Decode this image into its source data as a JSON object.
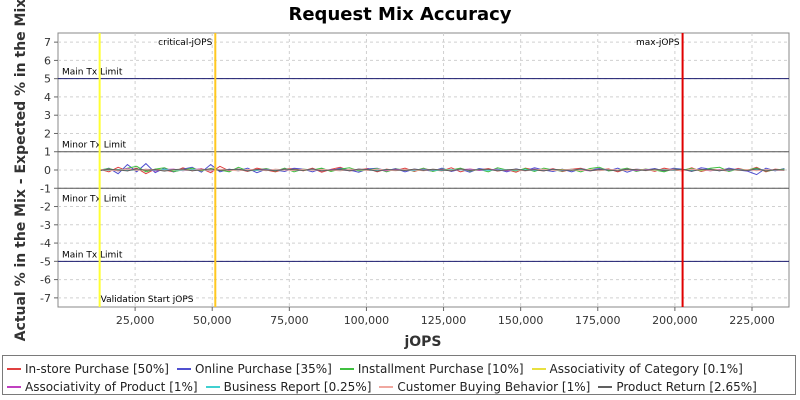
{
  "chart_data": {
    "type": "line",
    "title": "Request Mix Accuracy",
    "xlabel": "jOPS",
    "ylabel": "Actual % in the Mix - Expected % in the Mix",
    "xlim": [
      0,
      237000
    ],
    "ylim": [
      -7.5,
      7.5
    ],
    "x_ticks": [
      25000,
      50000,
      75000,
      100000,
      125000,
      150000,
      175000,
      200000,
      225000
    ],
    "x_tick_labels": [
      "25,000",
      "50,000",
      "75,000",
      "100,000",
      "125,000",
      "150,000",
      "175,000",
      "200,000",
      "225,000"
    ],
    "y_ticks": [
      -7,
      -6,
      -5,
      -4,
      -3,
      -2,
      -1,
      0,
      1,
      2,
      3,
      4,
      5,
      6,
      7
    ],
    "y_tick_labels": [
      "-7",
      "-6",
      "-5",
      "-4",
      "-3",
      "-2",
      "-1",
      "0",
      "1",
      "2",
      "3",
      "4",
      "5",
      "6",
      "7"
    ],
    "grid": true,
    "legend_position": "bottom",
    "reference_lines": [
      {
        "label": "Main Tx Limit",
        "y": 5,
        "color": "#1a1a6e"
      },
      {
        "label": "Minor Tx Limit",
        "y": 1,
        "color": "#555555"
      },
      {
        "label": "Minor Tx Limit",
        "y": -1,
        "color": "#555555"
      },
      {
        "label": "Main Tx Limit",
        "y": -5,
        "color": "#1a1a6e"
      }
    ],
    "vertical_markers": [
      {
        "label": "Validation Start jOPS",
        "x": 13500,
        "color": "#ffff33",
        "label_pos": "bottom"
      },
      {
        "label": "critical-jOPS",
        "x": 51000,
        "color": "#ffc820",
        "label_pos": "top"
      },
      {
        "label": "max-jOPS",
        "x": 202500,
        "color": "#e00000",
        "label_pos": "top"
      }
    ],
    "x": [
      13500,
      16500,
      19500,
      22500,
      25500,
      28500,
      31500,
      34500,
      37500,
      40500,
      43500,
      46500,
      49500,
      52500,
      55500,
      58500,
      61500,
      64500,
      67500,
      70500,
      73500,
      76500,
      79500,
      82500,
      85500,
      88500,
      91500,
      94500,
      97500,
      100500,
      103500,
      106500,
      109500,
      112500,
      115500,
      118500,
      121500,
      124500,
      127500,
      130500,
      133500,
      136500,
      139500,
      142500,
      145500,
      148500,
      151500,
      154500,
      157500,
      160500,
      163500,
      166500,
      169500,
      172500,
      175500,
      178500,
      181500,
      184500,
      187500,
      190500,
      193500,
      196500,
      199500,
      202500,
      205500,
      208500,
      211500,
      214500,
      217500,
      220500,
      223500,
      226500,
      229500,
      232500,
      235500
    ],
    "series": [
      {
        "name": "In-store Purchase [50%]",
        "color": "#e04040",
        "values": [
          0.05,
          -0.1,
          0.15,
          -0.05,
          0.1,
          -0.2,
          0.05,
          0.0,
          -0.1,
          0.12,
          -0.05,
          0.08,
          -0.15,
          0.2,
          -0.05,
          0.05,
          -0.08,
          0.1,
          0.0,
          -0.1,
          0.05,
          0.08,
          -0.05,
          0.1,
          -0.12,
          0.04,
          0.15,
          -0.05,
          0.0,
          0.08,
          -0.1,
          0.05,
          -0.03,
          0.1,
          -0.08,
          0.06,
          0.0,
          -0.05,
          0.12,
          -0.1,
          0.05,
          0.0,
          0.08,
          -0.06,
          0.03,
          -0.12,
          0.1,
          0.0,
          -0.05,
          0.07,
          -0.09,
          0.04,
          0.1,
          -0.04,
          0.0,
          0.06,
          -0.1,
          0.08,
          -0.02,
          0.05,
          -0.07,
          0.1,
          0.0,
          -0.05,
          0.12,
          -0.08,
          0.04,
          0.0,
          -0.06,
          0.09,
          -0.03,
          0.15,
          -0.1,
          0.05,
          0.0
        ]
      },
      {
        "name": "Online Purchase [35%]",
        "color": "#5050d0",
        "values": [
          -0.05,
          0.1,
          -0.2,
          0.3,
          -0.1,
          0.35,
          -0.15,
          0.1,
          -0.1,
          0.05,
          0.15,
          -0.12,
          0.3,
          -0.1,
          0.05,
          -0.05,
          0.1,
          -0.15,
          0.05,
          0.0,
          -0.08,
          0.1,
          0.05,
          -0.1,
          0.08,
          -0.05,
          0.1,
          0.0,
          -0.12,
          0.06,
          0.1,
          -0.05,
          0.08,
          -0.1,
          0.05,
          0.0,
          -0.06,
          0.1,
          -0.08,
          0.05,
          -0.12,
          0.08,
          0.0,
          0.05,
          -0.1,
          0.06,
          -0.05,
          0.12,
          0.0,
          -0.08,
          0.05,
          -0.1,
          0.06,
          0.0,
          0.08,
          -0.05,
          0.1,
          -0.12,
          0.05,
          0.0,
          0.08,
          -0.06,
          0.1,
          0.04,
          -0.08,
          0.12,
          0.05,
          -0.05,
          0.1,
          0.0,
          -0.06,
          -0.25,
          0.1,
          -0.05,
          0.08
        ]
      },
      {
        "name": "Installment Purchase [10%]",
        "color": "#40c040",
        "values": [
          0.0,
          0.08,
          -0.05,
          0.1,
          0.2,
          -0.1,
          0.05,
          0.12,
          -0.08,
          0.0,
          0.1,
          -0.05,
          0.08,
          0.0,
          -0.1,
          0.15,
          -0.05,
          0.0,
          0.08,
          -0.06,
          0.1,
          -0.1,
          0.05,
          0.0,
          0.1,
          -0.08,
          0.05,
          0.12,
          -0.05,
          0.0,
          0.08,
          -0.1,
          0.06,
          0.0,
          -0.05,
          0.1,
          -0.08,
          0.05,
          0.0,
          0.1,
          -0.06,
          0.04,
          -0.1,
          0.12,
          0.0,
          -0.05,
          0.08,
          -0.08,
          0.1,
          0.0,
          -0.06,
          0.05,
          -0.1,
          0.08,
          0.15,
          -0.05,
          0.0,
          0.1,
          -0.08,
          0.05,
          0.0,
          -0.1,
          0.06,
          0.0,
          0.08,
          -0.05,
          0.1,
          0.15,
          -0.08,
          0.05,
          0.0,
          0.1,
          -0.06,
          0.0,
          0.05
        ]
      },
      {
        "name": "Associativity of Category [0.1%]",
        "color": "#e8e040",
        "values": [
          0.02,
          -0.02,
          0.03,
          -0.01,
          0.02,
          -0.03,
          0.01,
          0.02,
          -0.02,
          0.01,
          0.03,
          -0.02,
          0.02,
          0.0,
          -0.01,
          0.02,
          -0.03,
          0.01,
          0.02,
          -0.01,
          0.0,
          0.03,
          -0.02,
          0.01,
          0.02,
          -0.02,
          0.01,
          0.0,
          0.02,
          -0.01,
          0.03,
          -0.02,
          0.01,
          0.02,
          -0.03,
          0.0,
          0.02,
          -0.01,
          0.01,
          0.03,
          -0.02,
          0.0,
          0.01,
          -0.02,
          0.02,
          0.0,
          -0.01,
          0.02,
          -0.02,
          0.01,
          0.03,
          -0.01,
          0.0,
          0.02,
          -0.02,
          0.01,
          0.0,
          -0.01,
          0.02,
          0.01,
          -0.02,
          0.03,
          0.0,
          -0.01,
          0.02,
          -0.02,
          0.01,
          0.0,
          0.02,
          -0.01,
          0.01,
          0.02,
          -0.02,
          0.0,
          0.01
        ]
      },
      {
        "name": "Associativity of Product [1%]",
        "color": "#c040c0",
        "values": [
          -0.02,
          0.05,
          -0.05,
          0.08,
          -0.03,
          0.04,
          -0.06,
          0.03,
          0.05,
          -0.04,
          0.02,
          0.06,
          -0.05,
          0.03,
          -0.02,
          0.05,
          -0.04,
          0.02,
          0.04,
          -0.03,
          0.05,
          -0.02,
          0.0,
          0.04,
          -0.05,
          0.03,
          0.02,
          -0.04,
          0.05,
          -0.02,
          0.03,
          -0.05,
          0.04,
          0.0,
          -0.03,
          0.05,
          -0.02,
          0.03,
          -0.04,
          0.02,
          0.05,
          -0.03,
          0.0,
          0.04,
          -0.05,
          0.02,
          -0.03,
          0.05,
          -0.02,
          0.04,
          -0.04,
          0.03,
          0.0,
          -0.05,
          0.04,
          0.02,
          -0.03,
          0.05,
          -0.04,
          0.02,
          0.03,
          -0.02,
          0.05,
          -0.03,
          0.0,
          0.04,
          -0.05,
          0.03,
          -0.02,
          0.05,
          -0.04,
          0.02,
          0.03,
          -0.03,
          0.0
        ]
      },
      {
        "name": "Business Report [0.25%]",
        "color": "#40d0d0",
        "values": [
          0.01,
          -0.03,
          0.02,
          0.0,
          -0.02,
          0.03,
          -0.01,
          0.02,
          0.0,
          -0.03,
          0.02,
          0.01,
          -0.02,
          0.03,
          0.0,
          -0.01,
          0.02,
          -0.03,
          0.01,
          0.0,
          0.03,
          -0.02,
          0.01,
          -0.01,
          0.02,
          0.0,
          -0.03,
          0.02,
          0.01,
          -0.02,
          0.0,
          0.03,
          -0.01,
          0.02,
          -0.02,
          0.01,
          0.0,
          -0.03,
          0.02,
          0.01,
          -0.01,
          0.03,
          -0.02,
          0.0,
          0.02,
          -0.01,
          0.01,
          -0.03,
          0.02,
          0.0,
          -0.02,
          0.03,
          0.01,
          -0.01,
          0.0,
          0.02,
          -0.03,
          0.01,
          0.02,
          -0.02,
          0.0,
          0.03,
          -0.01,
          0.01,
          -0.02,
          0.02,
          0.0,
          -0.03,
          0.01,
          0.02,
          -0.01,
          0.0,
          0.03,
          -0.02,
          0.01
        ]
      },
      {
        "name": "Customer Buying Behavior [1%]",
        "color": "#f0a8a0",
        "values": [
          0.03,
          0.0,
          -0.04,
          0.05,
          -0.02,
          0.04,
          0.02,
          -0.05,
          0.03,
          0.0,
          -0.03,
          0.05,
          -0.02,
          0.04,
          0.0,
          -0.05,
          0.03,
          0.02,
          -0.04,
          0.05,
          0.0,
          -0.03,
          0.04,
          -0.02,
          0.03,
          0.0,
          -0.05,
          0.04,
          0.02,
          -0.03,
          0.05,
          0.0,
          -0.04,
          0.03,
          0.02,
          -0.05,
          0.04,
          0.0,
          -0.02,
          0.05,
          -0.03,
          0.02,
          0.04,
          -0.04,
          0.0,
          0.03,
          -0.05,
          0.02,
          0.04,
          -0.02,
          0.0,
          0.05,
          -0.03,
          0.02,
          -0.04,
          0.03,
          0.0,
          -0.02,
          0.05,
          -0.04,
          0.02,
          0.0,
          0.03,
          -0.05,
          0.04,
          0.02,
          -0.03,
          0.0,
          0.05,
          -0.02,
          0.03,
          -0.04,
          0.02,
          0.0,
          -0.03
        ]
      },
      {
        "name": "Product Return [2.65%]",
        "color": "#606060",
        "values": [
          -0.03,
          0.04,
          0.0,
          -0.05,
          0.06,
          -0.02,
          0.03,
          -0.06,
          0.02,
          0.05,
          -0.04,
          0.0,
          0.06,
          -0.03,
          0.02,
          0.04,
          -0.05,
          0.03,
          0.0,
          -0.04,
          0.05,
          0.02,
          -0.03,
          0.06,
          -0.05,
          0.0,
          0.03,
          -0.04,
          0.05,
          0.02,
          -0.06,
          0.03,
          0.0,
          -0.03,
          0.05,
          -0.02,
          0.04,
          0.0,
          -0.05,
          0.06,
          -0.03,
          0.02,
          0.04,
          -0.04,
          0.0,
          0.05,
          -0.03,
          0.02,
          -0.05,
          0.04,
          0.0,
          -0.02,
          0.06,
          -0.04,
          0.03,
          0.0,
          -0.05,
          0.04,
          0.02,
          -0.03,
          0.05,
          -0.02,
          0.0,
          0.04,
          -0.06,
          0.03,
          0.02,
          -0.04,
          0.05,
          0.0,
          -0.03,
          0.06,
          -0.05,
          0.02,
          0.0
        ]
      }
    ]
  }
}
